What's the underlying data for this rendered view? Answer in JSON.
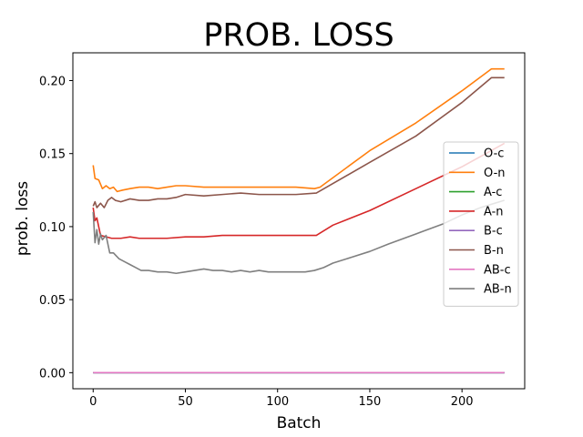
{
  "chart_data": {
    "type": "line",
    "title": "PROB. LOSS",
    "xlabel": "Batch",
    "ylabel": "prob. loss",
    "xlim": [
      -11,
      234
    ],
    "ylim": [
      -0.011,
      0.219
    ],
    "xticks": [
      0,
      50,
      100,
      150,
      200
    ],
    "yticks": [
      0.0,
      0.05,
      0.1,
      0.15,
      0.2
    ],
    "ytick_labels": [
      "0.00",
      "0.05",
      "0.10",
      "0.15",
      "0.20"
    ],
    "grid": false,
    "legend_position": "center-right",
    "series": [
      {
        "name": "O-c",
        "color": "#1f77b4",
        "points": [
          [
            0,
            0.0
          ],
          [
            223,
            0.0
          ]
        ]
      },
      {
        "name": "O-n",
        "color": "#ff7f0e",
        "points": [
          [
            0,
            0.142
          ],
          [
            1,
            0.133
          ],
          [
            3,
            0.132
          ],
          [
            5,
            0.126
          ],
          [
            7,
            0.128
          ],
          [
            9,
            0.126
          ],
          [
            11,
            0.127
          ],
          [
            13,
            0.124
          ],
          [
            16,
            0.125
          ],
          [
            20,
            0.126
          ],
          [
            25,
            0.127
          ],
          [
            30,
            0.127
          ],
          [
            35,
            0.126
          ],
          [
            40,
            0.127
          ],
          [
            45,
            0.128
          ],
          [
            50,
            0.128
          ],
          [
            60,
            0.127
          ],
          [
            70,
            0.127
          ],
          [
            80,
            0.127
          ],
          [
            90,
            0.127
          ],
          [
            100,
            0.127
          ],
          [
            110,
            0.127
          ],
          [
            120,
            0.126
          ],
          [
            123,
            0.127
          ],
          [
            150,
            0.152
          ],
          [
            175,
            0.171
          ],
          [
            200,
            0.193
          ],
          [
            216,
            0.208
          ],
          [
            223,
            0.208
          ]
        ]
      },
      {
        "name": "A-c",
        "color": "#2ca02c",
        "points": [
          [
            0,
            0.0
          ],
          [
            223,
            0.0
          ]
        ]
      },
      {
        "name": "A-n",
        "color": "#d62728",
        "points": [
          [
            0,
            0.113
          ],
          [
            1,
            0.104
          ],
          [
            2,
            0.106
          ],
          [
            4,
            0.094
          ],
          [
            7,
            0.093
          ],
          [
            10,
            0.092
          ],
          [
            15,
            0.092
          ],
          [
            20,
            0.093
          ],
          [
            25,
            0.092
          ],
          [
            30,
            0.092
          ],
          [
            40,
            0.092
          ],
          [
            50,
            0.093
          ],
          [
            60,
            0.093
          ],
          [
            70,
            0.094
          ],
          [
            80,
            0.094
          ],
          [
            90,
            0.094
          ],
          [
            100,
            0.094
          ],
          [
            110,
            0.094
          ],
          [
            121,
            0.094
          ],
          [
            130,
            0.101
          ],
          [
            150,
            0.111
          ],
          [
            175,
            0.126
          ],
          [
            200,
            0.141
          ],
          [
            223,
            0.157
          ]
        ]
      },
      {
        "name": "B-c",
        "color": "#9467bd",
        "points": [
          [
            0,
            0.0
          ],
          [
            223,
            0.0
          ]
        ]
      },
      {
        "name": "B-n",
        "color": "#8c564b",
        "points": [
          [
            0,
            0.114
          ],
          [
            1,
            0.117
          ],
          [
            2,
            0.113
          ],
          [
            4,
            0.116
          ],
          [
            6,
            0.113
          ],
          [
            8,
            0.118
          ],
          [
            10,
            0.12
          ],
          [
            12,
            0.118
          ],
          [
            15,
            0.117
          ],
          [
            20,
            0.119
          ],
          [
            25,
            0.118
          ],
          [
            30,
            0.118
          ],
          [
            35,
            0.119
          ],
          [
            40,
            0.119
          ],
          [
            45,
            0.12
          ],
          [
            50,
            0.122
          ],
          [
            60,
            0.121
          ],
          [
            70,
            0.122
          ],
          [
            80,
            0.123
          ],
          [
            90,
            0.122
          ],
          [
            100,
            0.122
          ],
          [
            110,
            0.122
          ],
          [
            121,
            0.123
          ],
          [
            150,
            0.144
          ],
          [
            175,
            0.162
          ],
          [
            200,
            0.185
          ],
          [
            216,
            0.202
          ],
          [
            223,
            0.202
          ]
        ]
      },
      {
        "name": "AB-c",
        "color": "#e377c2",
        "points": [
          [
            0,
            0.0
          ],
          [
            223,
            0.0
          ]
        ]
      },
      {
        "name": "AB-n",
        "color": "#7f7f7f",
        "points": [
          [
            0,
            0.11
          ],
          [
            1,
            0.089
          ],
          [
            2,
            0.098
          ],
          [
            3,
            0.088
          ],
          [
            4,
            0.095
          ],
          [
            5,
            0.091
          ],
          [
            7,
            0.094
          ],
          [
            9,
            0.082
          ],
          [
            11,
            0.082
          ],
          [
            14,
            0.078
          ],
          [
            17,
            0.076
          ],
          [
            20,
            0.074
          ],
          [
            23,
            0.072
          ],
          [
            26,
            0.07
          ],
          [
            30,
            0.07
          ],
          [
            35,
            0.069
          ],
          [
            40,
            0.069
          ],
          [
            45,
            0.068
          ],
          [
            50,
            0.069
          ],
          [
            55,
            0.07
          ],
          [
            60,
            0.071
          ],
          [
            65,
            0.07
          ],
          [
            70,
            0.07
          ],
          [
            75,
            0.069
          ],
          [
            80,
            0.07
          ],
          [
            85,
            0.069
          ],
          [
            90,
            0.07
          ],
          [
            95,
            0.069
          ],
          [
            100,
            0.069
          ],
          [
            105,
            0.069
          ],
          [
            110,
            0.069
          ],
          [
            115,
            0.069
          ],
          [
            120,
            0.07
          ],
          [
            125,
            0.072
          ],
          [
            130,
            0.075
          ],
          [
            140,
            0.079
          ],
          [
            150,
            0.083
          ],
          [
            160,
            0.088
          ],
          [
            175,
            0.095
          ],
          [
            190,
            0.102
          ],
          [
            200,
            0.108
          ],
          [
            210,
            0.113
          ],
          [
            223,
            0.118
          ]
        ]
      }
    ]
  }
}
